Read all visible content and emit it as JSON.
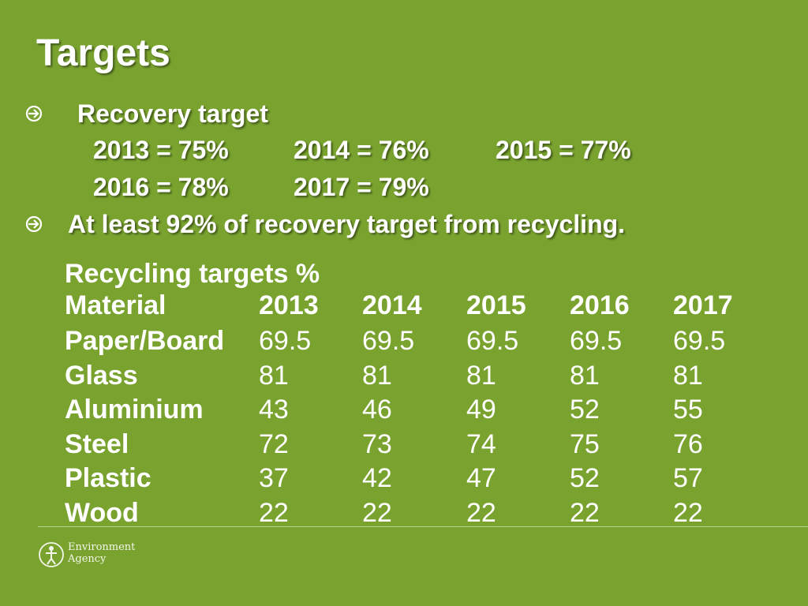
{
  "title": "Targets",
  "bullets": {
    "recovery_label": "Recovery target",
    "recovery_values": [
      "2013 = 75%",
      "2014 = 76%",
      "2015 = 77%",
      "2016 = 78%",
      "2017 = 79%"
    ],
    "recycling_note": "At least 92% of recovery target from recycling."
  },
  "table": {
    "title": "Recycling targets %",
    "headers": [
      "Material",
      "2013",
      "2014",
      "2015",
      "2016",
      "2017"
    ],
    "rows": [
      [
        "Paper/Board",
        "69.5",
        "69.5",
        "69.5",
        "69.5",
        "69.5"
      ],
      [
        "Glass",
        "81",
        "81",
        "81",
        "81",
        "81"
      ],
      [
        "Aluminium",
        "43",
        "46",
        "49",
        "52",
        "55"
      ],
      [
        "Steel",
        "72",
        "73",
        "74",
        "75",
        "76"
      ],
      [
        "Plastic",
        "37",
        "42",
        "47",
        "52",
        "57"
      ],
      [
        "Wood",
        "22",
        "22",
        "22",
        "22",
        "22"
      ]
    ]
  },
  "logo": {
    "line1": "Environment",
    "line2": "Agency"
  },
  "colors": {
    "background": "#79a22f",
    "text": "#ffffff"
  }
}
